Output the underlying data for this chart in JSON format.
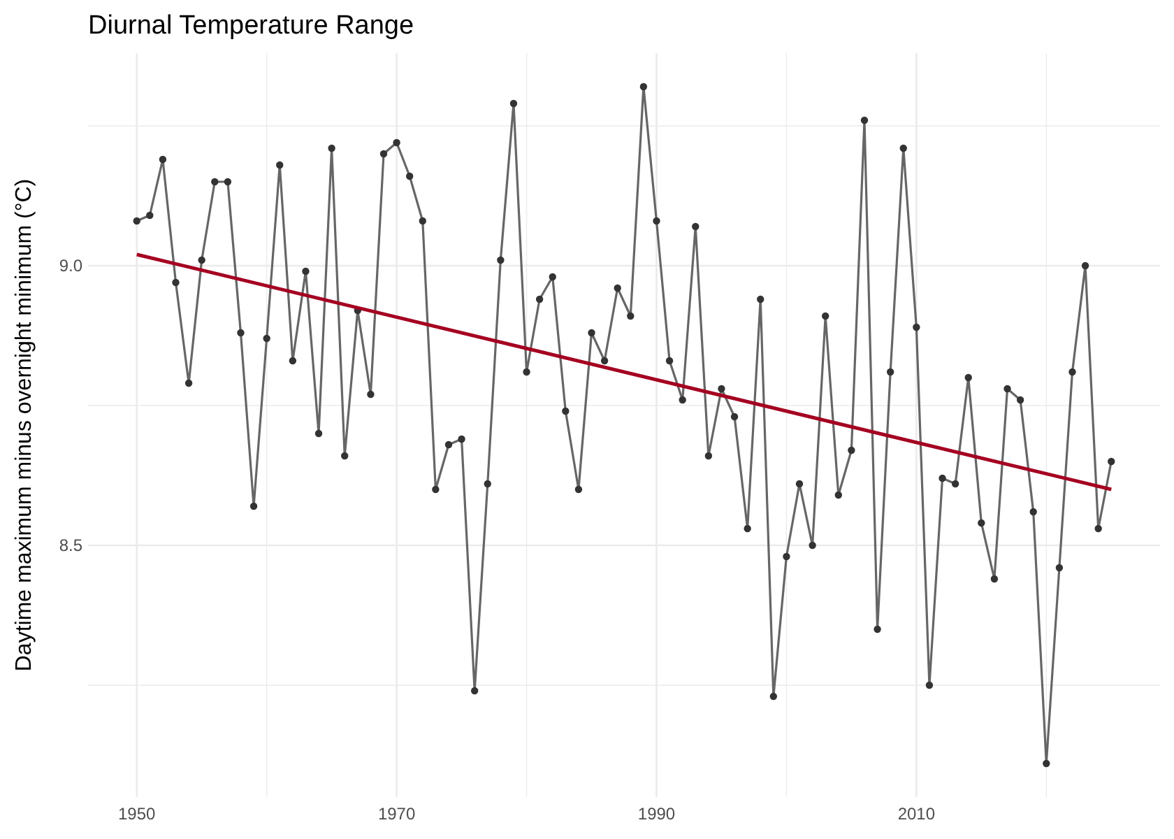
{
  "chart_data": {
    "type": "line",
    "title": "Diurnal Temperature Range",
    "ylabel": "Daytime maximum minus overnight minimum (°C)",
    "xlim": [
      1946.25,
      2028.75
    ],
    "xticks": [
      1950,
      {
        "value": 1960,
        "label": null
      },
      1970,
      {
        "value": 1980,
        "label": null
      },
      1990,
      {
        "value": 2000,
        "label": null
      },
      2010,
      {
        "value": 2020,
        "label": null
      }
    ],
    "ylim": [
      8.05,
      9.38
    ],
    "yticks": [
      {
        "value": 8.25,
        "label": null
      },
      {
        "value": 8.5,
        "label": "8.5"
      },
      {
        "value": 8.75,
        "label": null
      },
      {
        "value": 9,
        "label": "9.0"
      },
      {
        "value": 9.25,
        "label": null
      }
    ],
    "grid": true,
    "series": [
      {
        "marker": "circle",
        "color": "#555555",
        "x": [
          1950,
          1951,
          1952,
          1953,
          1954,
          1955,
          1956,
          1957,
          1958,
          1959,
          1960,
          1961,
          1962,
          1963,
          1964,
          1965,
          1966,
          1967,
          1968,
          1969,
          1970,
          1971,
          1972,
          1973,
          1974,
          1975,
          1976,
          1977,
          1978,
          1979,
          1980,
          1981,
          1982,
          1983,
          1984,
          1985,
          1986,
          1987,
          1988,
          1989,
          1990,
          1991,
          1992,
          1993,
          1994,
          1995,
          1996,
          1997,
          1998,
          1999,
          2000,
          2001,
          2002,
          2003,
          2004,
          2005,
          2006,
          2007,
          2008,
          2009,
          2010,
          2011,
          2012,
          2013,
          2014,
          2015,
          2016,
          2017,
          2018,
          2019,
          2020,
          2021,
          2022,
          2023,
          2024,
          2025
        ],
        "values": [
          9.08,
          9.09,
          9.19,
          8.97,
          8.79,
          9.01,
          9.15,
          9.15,
          8.88,
          8.57,
          8.87,
          9.18,
          8.83,
          8.99,
          8.7,
          9.21,
          8.66,
          8.92,
          8.77,
          9.2,
          9.22,
          9.16,
          9.08,
          8.6,
          8.68,
          8.69,
          8.24,
          8.61,
          9.01,
          9.29,
          8.81,
          8.94,
          8.98,
          8.74,
          8.6,
          8.88,
          8.83,
          8.96,
          8.91,
          9.32,
          9.08,
          8.83,
          8.76,
          9.07,
          8.66,
          8.78,
          8.73,
          8.53,
          8.94,
          8.23,
          8.48,
          8.61,
          8.5,
          8.91,
          8.59,
          8.67,
          9.26,
          8.35,
          8.81,
          9.21,
          8.89,
          8.25,
          8.62,
          8.61,
          8.8,
          8.54,
          8.44,
          8.78,
          8.76,
          8.56,
          8.11,
          8.46,
          8.81,
          9.0,
          8.53,
          8.65
        ]
      },
      {
        "marker": "none",
        "color": "#a50021",
        "x": [
          1950,
          2025
        ],
        "values": [
          9.02,
          8.6
        ]
      }
    ]
  }
}
